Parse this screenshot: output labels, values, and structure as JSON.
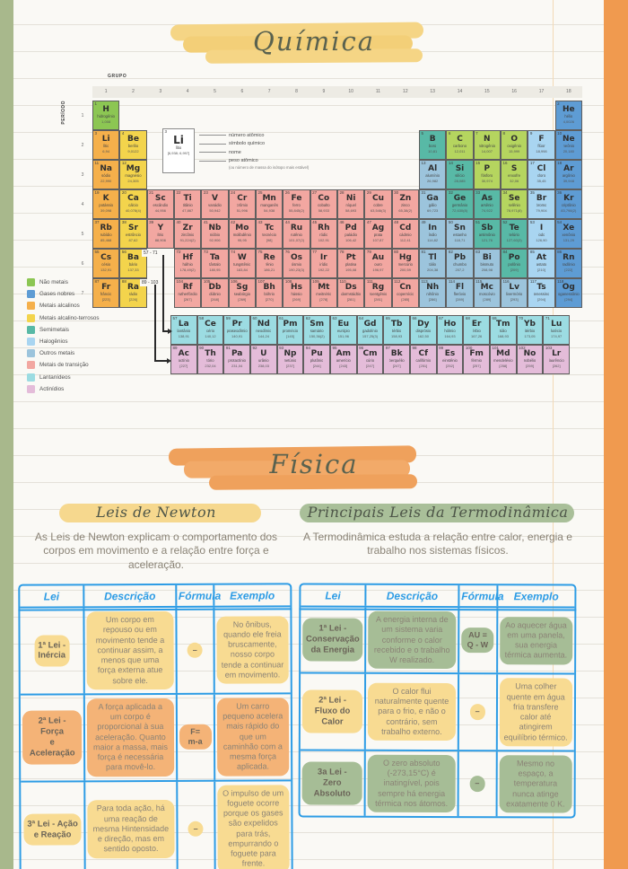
{
  "titles": {
    "chemistry": "Química",
    "physics": "Física"
  },
  "periodic_table": {
    "group_label": "GRUPO",
    "period_label": "PERÍODO",
    "groups": [
      "1",
      "2",
      "3",
      "4",
      "5",
      "6",
      "7",
      "8",
      "9",
      "10",
      "11",
      "12",
      "13",
      "14",
      "15",
      "16",
      "17",
      "18"
    ],
    "periods": [
      "1",
      "2",
      "3",
      "4",
      "5",
      "6",
      "7"
    ],
    "key": {
      "labels": [
        "número atômico",
        "símbolo químico",
        "nome",
        "peso atômico"
      ],
      "sublabel": "(ou número de massa do isótopo mais estável)",
      "example": {
        "n": "3",
        "s": "Li",
        "name": "lítio",
        "m": "[6,938; 6,997]"
      }
    },
    "f_block_refs": {
      "lanthanides": "57 - 71",
      "actinides": "89 - 103"
    },
    "category_colors": {
      "nmh": "#8cc653",
      "nm": "#b5d55f",
      "gn": "#5e9cd4",
      "ma": "#f5b04b",
      "mat": "#f3d44c",
      "sm": "#58b9a6",
      "hal": "#a9d5f1",
      "om": "#9cc4dc",
      "mt": "#f2a7a1",
      "lan": "#9cdce2",
      "act": "#e4bcd9"
    },
    "legend": [
      {
        "label": "Não metais",
        "cat": "nmh"
      },
      {
        "label": "Gases nobres",
        "cat": "gn"
      },
      {
        "label": "Metais alcalinos",
        "cat": "ma"
      },
      {
        "label": "Metais alcalino-terrosos",
        "cat": "mat"
      },
      {
        "label": "Semimetais",
        "cat": "sm"
      },
      {
        "label": "Halogênios",
        "cat": "hal"
      },
      {
        "label": "Outros metais",
        "cat": "om"
      },
      {
        "label": "Metais de transição",
        "cat": "mt"
      },
      {
        "label": "Lantanídeos",
        "cat": "lan"
      },
      {
        "label": "Actinídios",
        "cat": "act"
      }
    ],
    "elements": [
      [
        1,
        "H",
        "hidrogênio",
        "1,008",
        "nmh",
        1,
        1
      ],
      [
        2,
        "He",
        "hélio",
        "4,0026",
        "gn",
        1,
        18
      ],
      [
        3,
        "Li",
        "lítio",
        "6,94",
        "ma",
        2,
        1
      ],
      [
        4,
        "Be",
        "berílio",
        "9,0122",
        "mat",
        2,
        2
      ],
      [
        5,
        "B",
        "boro",
        "10,81",
        "sm",
        2,
        13
      ],
      [
        6,
        "C",
        "carbono",
        "12,011",
        "nm",
        2,
        14
      ],
      [
        7,
        "N",
        "nitrogênio",
        "14,007",
        "nm",
        2,
        15
      ],
      [
        8,
        "O",
        "oxigênio",
        "15,999",
        "nm",
        2,
        16
      ],
      [
        9,
        "F",
        "flúor",
        "18,998",
        "hal",
        2,
        17
      ],
      [
        10,
        "Ne",
        "neônio",
        "20,180",
        "gn",
        2,
        18
      ],
      [
        11,
        "Na",
        "sódio",
        "22,990",
        "ma",
        3,
        1
      ],
      [
        12,
        "Mg",
        "magnésio",
        "24,305",
        "mat",
        3,
        2
      ],
      [
        13,
        "Al",
        "alumínio",
        "26,982",
        "om",
        3,
        13
      ],
      [
        14,
        "Si",
        "silício",
        "28,085",
        "sm",
        3,
        14
      ],
      [
        15,
        "P",
        "fósforo",
        "30,974",
        "nm",
        3,
        15
      ],
      [
        16,
        "S",
        "enxofre",
        "32,06",
        "nm",
        3,
        16
      ],
      [
        17,
        "Cl",
        "cloro",
        "35,45",
        "hal",
        3,
        17
      ],
      [
        18,
        "Ar",
        "argônio",
        "39,948",
        "gn",
        3,
        18
      ],
      [
        19,
        "K",
        "potássio",
        "39,098",
        "ma",
        4,
        1
      ],
      [
        20,
        "Ca",
        "cálcio",
        "40,078(4)",
        "mat",
        4,
        2
      ],
      [
        21,
        "Sc",
        "escândio",
        "44,956",
        "mt",
        4,
        3
      ],
      [
        22,
        "Ti",
        "titânio",
        "47,867",
        "mt",
        4,
        4
      ],
      [
        23,
        "V",
        "vanádio",
        "50,942",
        "mt",
        4,
        5
      ],
      [
        24,
        "Cr",
        "crômio",
        "51,996",
        "mt",
        4,
        6
      ],
      [
        25,
        "Mn",
        "manganês",
        "54,938",
        "mt",
        4,
        7
      ],
      [
        26,
        "Fe",
        "ferro",
        "55,845(2)",
        "mt",
        4,
        8
      ],
      [
        27,
        "Co",
        "cobalto",
        "58,933",
        "mt",
        4,
        9
      ],
      [
        28,
        "Ni",
        "níquel",
        "58,693",
        "mt",
        4,
        10
      ],
      [
        29,
        "Cu",
        "cobre",
        "63,546(3)",
        "mt",
        4,
        11
      ],
      [
        30,
        "Zn",
        "zinco",
        "65,38(2)",
        "mt",
        4,
        12
      ],
      [
        31,
        "Ga",
        "gálio",
        "69,723",
        "om",
        4,
        13
      ],
      [
        32,
        "Ge",
        "germânio",
        "72,630(8)",
        "sm",
        4,
        14
      ],
      [
        33,
        "As",
        "arsênio",
        "74,922",
        "sm",
        4,
        15
      ],
      [
        34,
        "Se",
        "selênio",
        "78,971(8)",
        "nm",
        4,
        16
      ],
      [
        35,
        "Br",
        "bromo",
        "79,904",
        "hal",
        4,
        17
      ],
      [
        36,
        "Kr",
        "criptônio",
        "83,798(2)",
        "gn",
        4,
        18
      ],
      [
        37,
        "Rb",
        "rubídio",
        "85,468",
        "ma",
        5,
        1
      ],
      [
        38,
        "Sr",
        "estrôncio",
        "87,62",
        "mat",
        5,
        2
      ],
      [
        39,
        "Y",
        "ítrio",
        "88,906",
        "mt",
        5,
        3
      ],
      [
        40,
        "Zr",
        "zircônio",
        "91,224(2)",
        "mt",
        5,
        4
      ],
      [
        41,
        "Nb",
        "nióbio",
        "92,906",
        "mt",
        5,
        5
      ],
      [
        42,
        "Mo",
        "molibdênio",
        "95,95",
        "mt",
        5,
        6
      ],
      [
        43,
        "Tc",
        "tecnécio",
        "[98]",
        "mt",
        5,
        7
      ],
      [
        44,
        "Ru",
        "rutênio",
        "101,07(2)",
        "mt",
        5,
        8
      ],
      [
        45,
        "Rh",
        "ródio",
        "102,91",
        "mt",
        5,
        9
      ],
      [
        46,
        "Pd",
        "paládio",
        "106,42",
        "mt",
        5,
        10
      ],
      [
        47,
        "Ag",
        "prata",
        "107,87",
        "mt",
        5,
        11
      ],
      [
        48,
        "Cd",
        "cádmio",
        "112,41",
        "mt",
        5,
        12
      ],
      [
        49,
        "In",
        "índio",
        "114,82",
        "om",
        5,
        13
      ],
      [
        50,
        "Sn",
        "estanho",
        "118,71",
        "om",
        5,
        14
      ],
      [
        51,
        "Sb",
        "antimônio",
        "121,76",
        "sm",
        5,
        15
      ],
      [
        52,
        "Te",
        "telúrio",
        "127,60(3)",
        "sm",
        5,
        16
      ],
      [
        53,
        "I",
        "iodo",
        "126,90",
        "hal",
        5,
        17
      ],
      [
        54,
        "Xe",
        "xenônio",
        "131,29",
        "gn",
        5,
        18
      ],
      [
        55,
        "Cs",
        "césio",
        "132,91",
        "ma",
        6,
        1
      ],
      [
        56,
        "Ba",
        "bário",
        "137,33",
        "mat",
        6,
        2
      ],
      [
        72,
        "Hf",
        "háfnio",
        "178,49(2)",
        "mt",
        6,
        4
      ],
      [
        73,
        "Ta",
        "tântalo",
        "180,95",
        "mt",
        6,
        5
      ],
      [
        74,
        "W",
        "tungstênio",
        "183,84",
        "mt",
        6,
        6
      ],
      [
        75,
        "Re",
        "rênio",
        "186,21",
        "mt",
        6,
        7
      ],
      [
        76,
        "Os",
        "ósmio",
        "190,23(3)",
        "mt",
        6,
        8
      ],
      [
        77,
        "Ir",
        "irídio",
        "192,22",
        "mt",
        6,
        9
      ],
      [
        78,
        "Pt",
        "platina",
        "195,08",
        "mt",
        6,
        10
      ],
      [
        79,
        "Au",
        "ouro",
        "196,97",
        "mt",
        6,
        11
      ],
      [
        80,
        "Hg",
        "mercúrio",
        "200,59",
        "mt",
        6,
        12
      ],
      [
        81,
        "Tl",
        "tálio",
        "204,38",
        "om",
        6,
        13
      ],
      [
        82,
        "Pb",
        "chumbo",
        "207,2",
        "om",
        6,
        14
      ],
      [
        83,
        "Bi",
        "bismuto",
        "208,98",
        "om",
        6,
        15
      ],
      [
        84,
        "Po",
        "polônio",
        "[209]",
        "sm",
        6,
        16
      ],
      [
        85,
        "At",
        "astato",
        "[210]",
        "hal",
        6,
        17
      ],
      [
        86,
        "Rn",
        "radônio",
        "[222]",
        "gn",
        6,
        18
      ],
      [
        87,
        "Fr",
        "frâncio",
        "[223]",
        "ma",
        7,
        1
      ],
      [
        88,
        "Ra",
        "rádio",
        "[226]",
        "mat",
        7,
        2
      ],
      [
        104,
        "Rf",
        "rutherfórdio",
        "[267]",
        "mt",
        7,
        4
      ],
      [
        105,
        "Db",
        "dúbnio",
        "[268]",
        "mt",
        7,
        5
      ],
      [
        106,
        "Sg",
        "seabórgio",
        "[269]",
        "mt",
        7,
        6
      ],
      [
        107,
        "Bh",
        "bóhrio",
        "[270]",
        "mt",
        7,
        7
      ],
      [
        108,
        "Hs",
        "hássio",
        "[269]",
        "mt",
        7,
        8
      ],
      [
        109,
        "Mt",
        "meitnério",
        "[278]",
        "mt",
        7,
        9
      ],
      [
        110,
        "Ds",
        "darmstádtio",
        "[281]",
        "mt",
        7,
        10
      ],
      [
        111,
        "Rg",
        "roentgênio",
        "[281]",
        "mt",
        7,
        11
      ],
      [
        112,
        "Cn",
        "copernício",
        "[285]",
        "mt",
        7,
        12
      ],
      [
        113,
        "Nh",
        "nihônio",
        "[286]",
        "om",
        7,
        13
      ],
      [
        114,
        "Fl",
        "fleróvio",
        "[289]",
        "om",
        7,
        14
      ],
      [
        115,
        "Mc",
        "moscóvio",
        "[289]",
        "om",
        7,
        15
      ],
      [
        116,
        "Lv",
        "livermório",
        "[293]",
        "om",
        7,
        16
      ],
      [
        117,
        "Ts",
        "tenessino",
        "[294]",
        "hal",
        7,
        17
      ],
      [
        118,
        "Og",
        "oganessônio",
        "[294]",
        "gn",
        7,
        18
      ]
    ],
    "f_elements": [
      [
        57,
        "La",
        "lantânio",
        "138,91",
        "lan",
        1,
        1
      ],
      [
        58,
        "Ce",
        "cério",
        "140,12",
        "lan",
        1,
        2
      ],
      [
        59,
        "Pr",
        "praseodímio",
        "140,91",
        "lan",
        1,
        3
      ],
      [
        60,
        "Nd",
        "neodímio",
        "144,24",
        "lan",
        1,
        4
      ],
      [
        61,
        "Pm",
        "promécio",
        "[145]",
        "lan",
        1,
        5
      ],
      [
        62,
        "Sm",
        "samário",
        "150,36(2)",
        "lan",
        1,
        6
      ],
      [
        63,
        "Eu",
        "európio",
        "151,96",
        "lan",
        1,
        7
      ],
      [
        64,
        "Gd",
        "gadolínio",
        "157,25(3)",
        "lan",
        1,
        8
      ],
      [
        65,
        "Tb",
        "térbio",
        "158,93",
        "lan",
        1,
        9
      ],
      [
        66,
        "Dy",
        "disprósio",
        "162,50",
        "lan",
        1,
        10
      ],
      [
        67,
        "Ho",
        "hólmio",
        "164,93",
        "lan",
        1,
        11
      ],
      [
        68,
        "Er",
        "érbio",
        "167,26",
        "lan",
        1,
        12
      ],
      [
        69,
        "Tm",
        "túlio",
        "168,93",
        "lan",
        1,
        13
      ],
      [
        70,
        "Yb",
        "itérbio",
        "173,05",
        "lan",
        1,
        14
      ],
      [
        71,
        "Lu",
        "lutécio",
        "174,97",
        "lan",
        1,
        15
      ],
      [
        89,
        "Ac",
        "actínio",
        "[227]",
        "act",
        2,
        1
      ],
      [
        90,
        "Th",
        "tório",
        "232,04",
        "act",
        2,
        2
      ],
      [
        91,
        "Pa",
        "protactínio",
        "231,04",
        "act",
        2,
        3
      ],
      [
        92,
        "U",
        "urânio",
        "238,03",
        "act",
        2,
        4
      ],
      [
        93,
        "Np",
        "netúnio",
        "[237]",
        "act",
        2,
        5
      ],
      [
        94,
        "Pu",
        "plutônio",
        "[244]",
        "act",
        2,
        6
      ],
      [
        95,
        "Am",
        "amerício",
        "[243]",
        "act",
        2,
        7
      ],
      [
        96,
        "Cm",
        "cúrio",
        "[247]",
        "act",
        2,
        8
      ],
      [
        97,
        "Bk",
        "berquélio",
        "[247]",
        "act",
        2,
        9
      ],
      [
        98,
        "Cf",
        "califórnio",
        "[251]",
        "act",
        2,
        10
      ],
      [
        99,
        "Es",
        "einstênio",
        "[252]",
        "act",
        2,
        11
      ],
      [
        100,
        "Fm",
        "férmio",
        "[257]",
        "act",
        2,
        12
      ],
      [
        101,
        "Md",
        "mendelévio",
        "[258]",
        "act",
        2,
        13
      ],
      [
        102,
        "No",
        "nobélio",
        "[259]",
        "act",
        2,
        14
      ],
      [
        103,
        "Lr",
        "laurêncio",
        "[262]",
        "act",
        2,
        15
      ]
    ]
  },
  "table_headers": [
    "Lei",
    "Descrição",
    "Fórmula",
    "Exemplo"
  ],
  "highlight_colors": {
    "yellow": "#f8db92",
    "orange": "#f4b377",
    "green": "#a6bd96"
  },
  "newton": {
    "subtitle": "Leis de Newton",
    "intro": "As Leis de Newton explicam o comportamento dos corpos em movimento e a relação entre força e aceleração.",
    "rows": [
      {
        "lei": "1ª Lei -\nInércia",
        "desc": "Um corpo em repouso ou em movimento tende a continuar assim, a menos que uma força externa atue sobre ele.",
        "formula": "–",
        "exemplo": "No ônibus, quando ele freia bruscamente, nosso corpo tende a continuar em movimento.",
        "hl": "yellow"
      },
      {
        "lei": "2ª Lei - Força\ne Aceleração",
        "desc": "A força aplicada a um corpo é proporcional à sua aceleração. Quanto maior a massa, mais força é necessária para movê-lo.",
        "formula": "F= m-a",
        "exemplo": "Um carro pequeno acelera mais rápido do que um caminhão com a mesma força aplicada.",
        "hl": "orange"
      },
      {
        "lei": "3ª Lei - Ação\ne Reação",
        "desc": "Para toda ação, há uma reação de mesma Hintensidade e direção, mas em sentido oposto.",
        "formula": "–",
        "exemplo": "O impulso de um foguete ocorre porque os gases são expelidos para trás, empurrando o foguete para frente.",
        "hl": "yellow"
      }
    ]
  },
  "thermo": {
    "subtitle": "Principais Leis da Termodinâmica",
    "intro": "A Termodinâmica estuda a relação entre calor, energia e trabalho nos sistemas físicos.",
    "rows": [
      {
        "lei": "1ª Lei -\nConservação\nda Energia",
        "desc": "A energia interna de um sistema varia conforme o calor recebido e o trabalho W realizado.",
        "formula": "AU =\nQ - W",
        "exemplo": "Ao aquecer água em uma panela, sua energia térmica aumenta.",
        "hl": "green"
      },
      {
        "lei": "2ª Lei -\nFluxo do Calor",
        "desc": "O calor flui naturalmente quente para o frio, e não o contrário, sem trabalho externo.",
        "formula": "–",
        "exemplo": "Uma colher quente em água fria transfere calor até atingirem equilíbrio térmico.",
        "hl": "yellow"
      },
      {
        "lei": "3a Lei -\nZero Absoluto",
        "desc": "O zero absoluto (-273,15°C) é inatingível, pois sempre há energia térmica nos átomos.",
        "formula": "–",
        "exemplo": "Mesmo no espaço, a temperatura nunca atinge exatamente 0 K.",
        "hl": "green"
      }
    ]
  }
}
